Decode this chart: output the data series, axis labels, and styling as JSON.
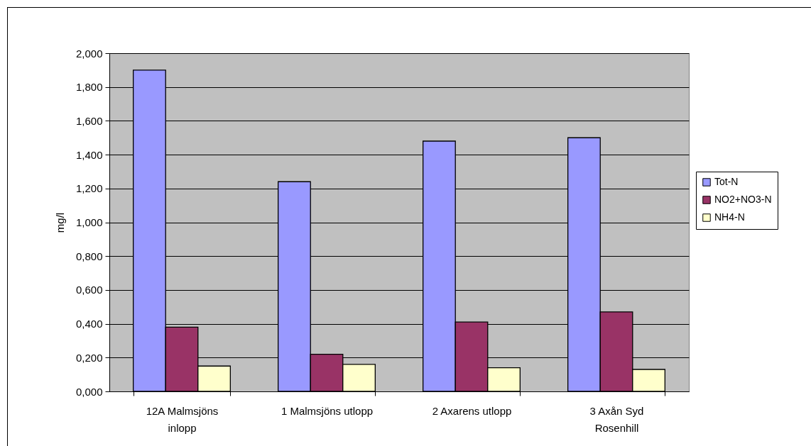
{
  "chart_data": {
    "type": "bar",
    "ylabel": "mg/l",
    "categories": [
      "12A Malmsjöns inlopp",
      "1 Malmsjöns utlopp",
      "2 Axarens utlopp",
      "3 Axån Syd Rosenhill"
    ],
    "series": [
      {
        "name": "Tot-N",
        "color": "#9999ff",
        "values": [
          1.9,
          1.24,
          1.48,
          1.5
        ]
      },
      {
        "name": "NO2+NO3-N",
        "color": "#993366",
        "values": [
          0.38,
          0.22,
          0.41,
          0.47
        ]
      },
      {
        "name": "NH4-N",
        "color": "#ffffcc",
        "values": [
          0.15,
          0.16,
          0.14,
          0.13
        ]
      }
    ],
    "ylim": [
      0,
      2
    ],
    "yticks": [
      {
        "value": 0,
        "label": "0,000"
      },
      {
        "value": 0.2,
        "label": "0,200"
      },
      {
        "value": 0.4,
        "label": "0,400"
      },
      {
        "value": 0.6,
        "label": "0,600"
      },
      {
        "value": 0.8,
        "label": "0,800"
      },
      {
        "value": 1,
        "label": "1,000"
      },
      {
        "value": 1.2,
        "label": "1,200"
      },
      {
        "value": 1.4,
        "label": "1,400"
      },
      {
        "value": 1.6,
        "label": "1,600"
      },
      {
        "value": 1.8,
        "label": "1,800"
      },
      {
        "value": 2,
        "label": "2,000"
      }
    ],
    "grid": true,
    "legend": "right"
  }
}
